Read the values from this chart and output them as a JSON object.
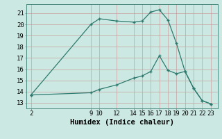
{
  "line1_x": [
    2,
    9,
    10,
    12,
    14,
    15,
    16,
    17,
    18,
    19,
    20,
    21,
    22,
    23
  ],
  "line1_y": [
    13.7,
    20.0,
    20.5,
    20.3,
    20.2,
    20.3,
    21.1,
    21.3,
    20.4,
    18.3,
    15.8,
    14.3,
    13.2,
    12.9
  ],
  "line2_x": [
    2,
    9,
    10,
    12,
    14,
    15,
    16,
    17,
    18,
    19,
    20,
    21,
    22,
    23
  ],
  "line2_y": [
    13.7,
    13.9,
    14.2,
    14.6,
    15.2,
    15.4,
    15.8,
    17.2,
    15.9,
    15.6,
    15.8,
    14.3,
    13.2,
    12.9
  ],
  "line_color": "#2d7a6e",
  "bg_color": "#cce8e2",
  "grid_color": "#aacfc9",
  "xlabel": "Humidex (Indice chaleur)",
  "xticks": [
    2,
    9,
    10,
    12,
    14,
    15,
    16,
    17,
    18,
    19,
    20,
    21,
    22,
    23
  ],
  "yticks": [
    13,
    14,
    15,
    16,
    17,
    18,
    19,
    20,
    21
  ],
  "xlim": [
    1.5,
    23.8
  ],
  "ylim": [
    12.5,
    21.8
  ],
  "xlabel_fontsize": 7.5,
  "tick_fontsize": 6.5
}
